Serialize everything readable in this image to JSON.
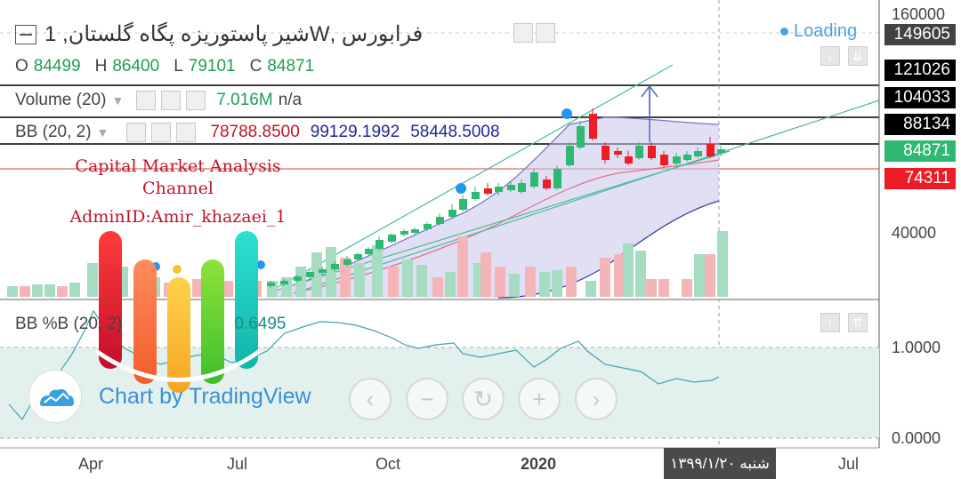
{
  "header": {
    "symbol_title": "فرابورس ,Wشیر پاستوریزه پگاه گلستان, 1",
    "loading_label": "Loading",
    "ohlc": {
      "o_label": "O",
      "o": "84499",
      "h_label": "H",
      "h": "86400",
      "l_label": "L",
      "l": "79101",
      "c_label": "C",
      "c": "84871"
    }
  },
  "indicators": {
    "volume": {
      "label": "Volume (20)",
      "value": "7.016M",
      "na": "n/a"
    },
    "bb": {
      "label": "BB (20, 2)",
      "basis": "78788.8500",
      "upper": "99129.1992",
      "lower": "58448.5008"
    },
    "bbpb": {
      "label": "BB %B (20, 2)",
      "value": "0.6495"
    }
  },
  "price_axis": {
    "ticks": [
      "160000",
      "40000"
    ],
    "labels": [
      {
        "text": "149605",
        "bg": "#424242"
      },
      {
        "text": "121026",
        "bg": "#000000"
      },
      {
        "text": "104033",
        "bg": "#000000"
      },
      {
        "text": "88134",
        "bg": "#000000"
      },
      {
        "text": "84871",
        "bg": "#2eb872"
      },
      {
        "text": "74311",
        "bg": "#ee1c25"
      }
    ]
  },
  "pb_axis": {
    "ticks": [
      "1.0000",
      "0.0000"
    ]
  },
  "time_axis": {
    "ticks": [
      "Apr",
      "Jul",
      "Oct",
      "2020",
      "Jul"
    ],
    "cursor_date": "شنبه ۱۳۹۹/۱/۲۰"
  },
  "watermark": {
    "line1": "Capital Market Analysis",
    "line2": "Channel",
    "line3": "AdminID:Amir_khazaei_1"
  },
  "branding": {
    "text": "Chart by TradingView"
  },
  "navigation": {
    "back_icon": "chevron-left-icon",
    "zoom_out_icon": "minus-icon",
    "reset_icon": "reset-icon",
    "zoom_in_icon": "plus-icon",
    "forward_icon": "chevron-right-icon"
  },
  "colors": {
    "up": "#2eb872",
    "down": "#ee1c25",
    "bb_fill": "#c9c4ea",
    "bb_line": "#3f3fa8",
    "pb_fill": "#e3f1ee",
    "pb_line": "#3fa3b0",
    "accent": "#2196f3"
  },
  "chart_data": {
    "type": "candlestick",
    "x_ticks": [
      "Apr",
      "Jul",
      "Oct",
      "2020",
      "Jul"
    ],
    "y_ticks": [
      "160000",
      "40000"
    ],
    "last_close": 84871,
    "price_levels": [
      149605,
      121026,
      104033,
      88134,
      84871,
      74311
    ],
    "bb_last": {
      "basis": 78788.85,
      "upper": 99129.1992,
      "lower": 58448.5008
    },
    "bbpb_last": 0.6495
  }
}
